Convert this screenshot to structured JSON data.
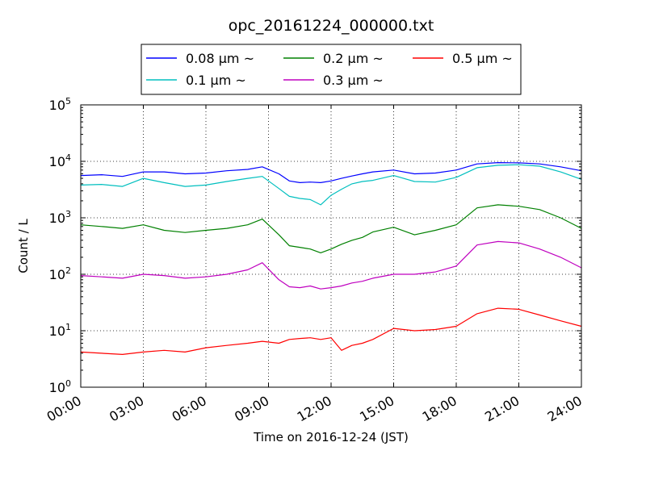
{
  "chart_data": {
    "type": "line",
    "title": "opc_20161224_000000.txt",
    "xlabel": "Time on 2016-12-24 (JST)",
    "ylabel": "Count / L",
    "yscale": "log",
    "ylim": [
      1,
      100000
    ],
    "xlim_hours": [
      0,
      24
    ],
    "grid": true,
    "legend_position": "top-center",
    "x_ticks": [
      "00:00",
      "03:00",
      "06:00",
      "09:00",
      "12:00",
      "15:00",
      "18:00",
      "21:00",
      "24:00"
    ],
    "y_ticks": [
      {
        "base": "10",
        "exp": "0"
      },
      {
        "base": "10",
        "exp": "1"
      },
      {
        "base": "10",
        "exp": "2"
      },
      {
        "base": "10",
        "exp": "3"
      },
      {
        "base": "10",
        "exp": "4"
      },
      {
        "base": "10",
        "exp": "5"
      }
    ],
    "x_hours": [
      0,
      1,
      2,
      3,
      4,
      5,
      6,
      7,
      8,
      8.7,
      9.5,
      10,
      10.5,
      11,
      11.5,
      12,
      12.5,
      13,
      13.5,
      14,
      15,
      16,
      17,
      18,
      19,
      20,
      21,
      22,
      23,
      24
    ],
    "series": [
      {
        "name": "0.08 μm ~",
        "color": "#0000ff",
        "values": [
          5600,
          5800,
          5400,
          6500,
          6500,
          6000,
          6200,
          6800,
          7200,
          8000,
          6000,
          4500,
          4200,
          4300,
          4200,
          4500,
          5000,
          5500,
          6000,
          6500,
          7000,
          6000,
          6200,
          7000,
          9000,
          9500,
          9400,
          9000,
          8000,
          6800
        ]
      },
      {
        "name": "0.1 μm ~",
        "color": "#00bfbf",
        "values": [
          3800,
          3900,
          3600,
          5000,
          4200,
          3600,
          3800,
          4400,
          5000,
          5400,
          3300,
          2400,
          2200,
          2100,
          1700,
          2500,
          3200,
          4000,
          4400,
          4600,
          5600,
          4400,
          4300,
          5200,
          7700,
          8500,
          8700,
          8200,
          6500,
          4800
        ]
      },
      {
        "name": "0.2 μm ~",
        "color": "#008000",
        "values": [
          750,
          700,
          650,
          750,
          600,
          550,
          600,
          650,
          750,
          950,
          500,
          320,
          300,
          280,
          240,
          280,
          340,
          400,
          450,
          560,
          680,
          500,
          600,
          750,
          1500,
          1700,
          1600,
          1400,
          1000,
          650
        ]
      },
      {
        "name": "0.3 μm ~",
        "color": "#bf00bf",
        "values": [
          95,
          90,
          85,
          100,
          95,
          85,
          90,
          100,
          120,
          160,
          80,
          60,
          58,
          62,
          55,
          58,
          62,
          70,
          75,
          85,
          100,
          100,
          110,
          140,
          330,
          380,
          360,
          280,
          200,
          130
        ]
      },
      {
        "name": "0.5 μm ~",
        "color": "#ff0000",
        "values": [
          4.2,
          4.0,
          3.8,
          4.2,
          4.5,
          4.2,
          5.0,
          5.5,
          6.0,
          6.5,
          6.0,
          7.0,
          7.3,
          7.5,
          7.0,
          7.5,
          4.5,
          5.5,
          6.0,
          7.0,
          11.0,
          10.0,
          10.5,
          12.0,
          20.0,
          25.0,
          24.0,
          19.0,
          15.0,
          12.0
        ]
      }
    ]
  }
}
